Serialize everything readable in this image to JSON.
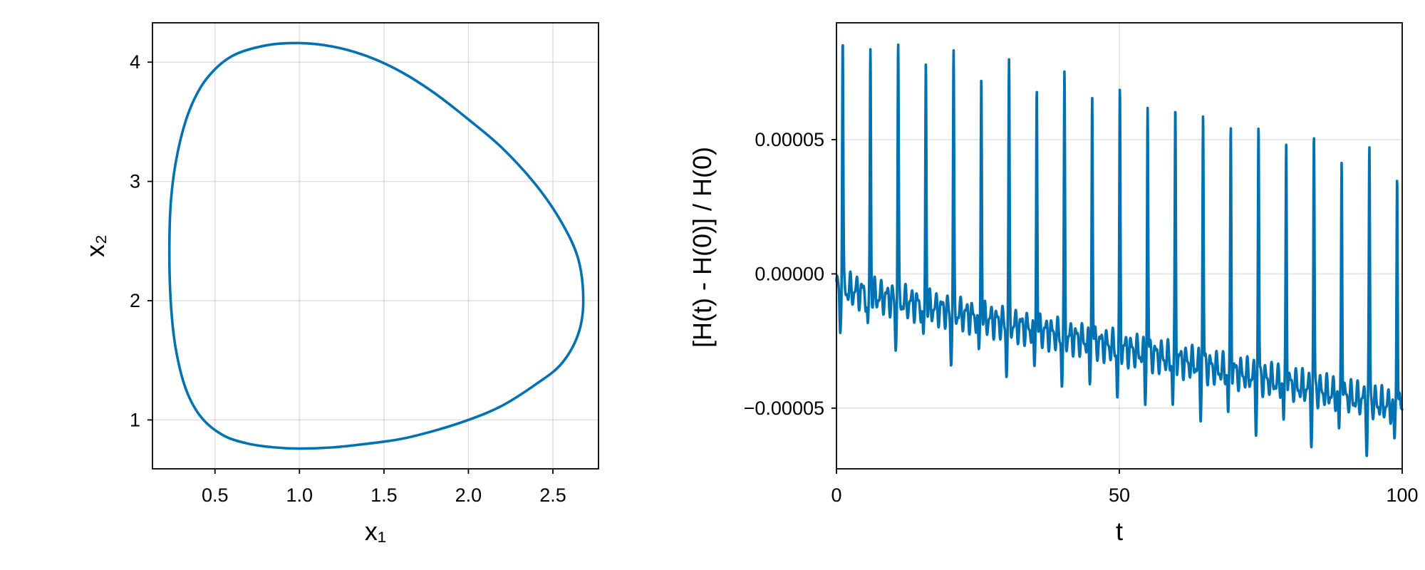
{
  "chart_data": [
    {
      "type": "line",
      "title": "",
      "xlabel": "x₁",
      "ylabel": "x₂",
      "xlim": [
        0.13,
        2.77
      ],
      "ylim": [
        0.59,
        4.33
      ],
      "xticks": [
        0.5,
        1.0,
        1.5,
        2.0,
        2.5
      ],
      "xtick_labels": [
        "0.5",
        "1.0",
        "1.5",
        "2.0",
        "2.5"
      ],
      "yticks": [
        1,
        2,
        3,
        4
      ],
      "ytick_labels": [
        "1",
        "2",
        "3",
        "4"
      ],
      "grid": true,
      "legend": "none",
      "color": "#0072b2",
      "series": [
        {
          "name": "",
          "closed": true,
          "x": [
            1.0,
            1.2,
            1.4,
            1.6,
            1.8,
            2.0,
            2.2,
            2.4,
            2.55,
            2.65,
            2.68,
            2.65,
            2.55,
            2.4,
            2.2,
            2.0,
            1.8,
            1.6,
            1.4,
            1.2,
            1.0,
            0.8,
            0.6,
            0.45,
            0.35,
            0.28,
            0.24,
            0.23,
            0.24,
            0.27,
            0.33,
            0.42,
            0.55,
            0.7,
            0.85,
            1.0
          ],
          "y": [
            0.76,
            0.77,
            0.8,
            0.84,
            0.91,
            1.0,
            1.12,
            1.3,
            1.47,
            1.72,
            2.0,
            2.35,
            2.66,
            2.97,
            3.28,
            3.52,
            3.74,
            3.92,
            4.05,
            4.13,
            4.16,
            4.14,
            4.05,
            3.86,
            3.6,
            3.25,
            2.85,
            2.4,
            1.95,
            1.58,
            1.25,
            1.02,
            0.87,
            0.8,
            0.77,
            0.76
          ]
        }
      ]
    },
    {
      "type": "line",
      "title": "",
      "xlabel": "t",
      "ylabel": "[H(t) - H(0)] / H(0)",
      "xlim": [
        0,
        100
      ],
      "ylim": [
        -7.26e-05,
        9.35e-05
      ],
      "xticks": [
        0,
        50,
        100
      ],
      "xtick_labels": [
        "0",
        "50",
        "100"
      ],
      "yticks": [
        5e-05,
        0.0,
        -5e-05
      ],
      "ytick_labels": [
        "0.00005",
        "0.00000",
        "−0.00005"
      ],
      "grid": true,
      "legend": "none",
      "color": "#0072b2",
      "period": 4.9,
      "series": [
        {
          "name": "",
          "spike_t": [
            1.1,
            6.0,
            10.9,
            15.8,
            20.7,
            25.6,
            30.5,
            35.4,
            40.3,
            45.2,
            50.1,
            55.0,
            59.9,
            64.8,
            69.7,
            74.6,
            79.5,
            84.4,
            89.3,
            94.2,
            99.1
          ],
          "spike_peak": [
            8.65e-05,
            8.45e-05,
            8.25e-05,
            8e-05,
            7.75e-05,
            7.55e-05,
            7.3e-05,
            7.1e-05,
            6.9e-05,
            6.7e-05,
            6.45e-05,
            6.2e-05,
            6e-05,
            5.8e-05,
            5.55e-05,
            5.35e-05,
            5.15e-05,
            4.95e-05,
            4.7e-05,
            4.5e-05,
            4.25e-05
          ],
          "trough": [
            -2.15e-05,
            -2.4e-05,
            -2.65e-05,
            -2.85e-05,
            -3.1e-05,
            -3.3e-05,
            -3.5e-05,
            -3.7e-05,
            -3.9e-05,
            -4.1e-05,
            -4.4e-05,
            -4.6e-05,
            -4.8e-05,
            -5e-05,
            -5.2e-05,
            -5.4e-05,
            -5.6e-05,
            -5.8e-05,
            -6e-05,
            -6.2e-05,
            -6.4e-05
          ],
          "baseline_start": -5e-06,
          "baseline_slope": -4.5e-07
        }
      ]
    }
  ]
}
